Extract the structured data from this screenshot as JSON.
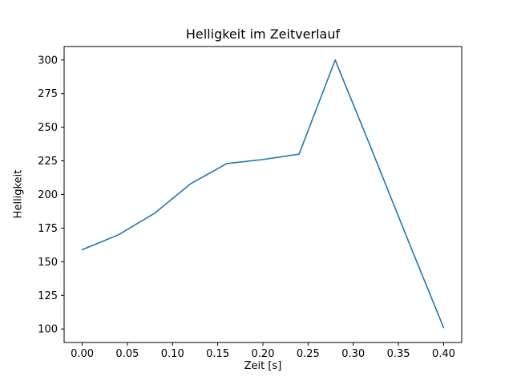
{
  "figure": {
    "background": "#ffffff",
    "text_color": "#000000"
  },
  "chart_data": {
    "type": "line",
    "title": "Helligkeit im Zeitverlauf",
    "xlabel": "Zeit [s]",
    "ylabel": "Helligkeit",
    "line_color": "#1f77b4",
    "x": [
      0.0,
      0.04,
      0.08,
      0.12,
      0.16,
      0.2,
      0.24,
      0.28,
      0.32,
      0.36,
      0.4
    ],
    "y": [
      159,
      170,
      186,
      208,
      223,
      226,
      230,
      300,
      234,
      167,
      101
    ],
    "xlim": [
      -0.02,
      0.42
    ],
    "ylim": [
      90,
      310
    ],
    "xticks": [
      0.0,
      0.05,
      0.1,
      0.15,
      0.2,
      0.25,
      0.3,
      0.35,
      0.4
    ],
    "xtick_labels": [
      "0.00",
      "0.05",
      "0.10",
      "0.15",
      "0.20",
      "0.25",
      "0.30",
      "0.35",
      "0.40"
    ],
    "yticks": [
      100,
      125,
      150,
      175,
      200,
      225,
      250,
      275,
      300
    ],
    "ytick_labels": [
      "100",
      "125",
      "150",
      "175",
      "200",
      "225",
      "250",
      "275",
      "300"
    ],
    "grid": false,
    "legend": null
  }
}
